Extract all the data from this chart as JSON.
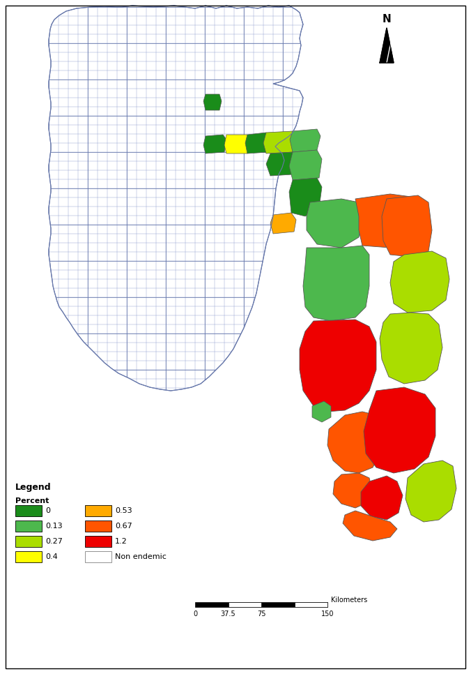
{
  "background_color": "#ffffff",
  "map_edge_color": "#8899bb",
  "map_fill_nonendemic": "#ffffff",
  "upazila_border_color": "#8899cc",
  "upazila_linewidth": 0.3,
  "district_border_color": "#6677aa",
  "district_linewidth": 0.7,
  "legend_items": [
    {
      "label": "0",
      "color": "#1a8c1a"
    },
    {
      "label": "0.13",
      "color": "#4db84d"
    },
    {
      "label": "0.27",
      "color": "#aadd00"
    },
    {
      "label": "0.4",
      "color": "#ffff00"
    },
    {
      "label": "0.53",
      "color": "#ffaa00"
    },
    {
      "label": "0.67",
      "color": "#ff5500"
    },
    {
      "label": "1.2",
      "color": "#ee0000"
    },
    {
      "label": "Non endemic",
      "color": "#ffffff"
    }
  ],
  "scalebar_ticks": [
    "0",
    "37.5",
    "75",
    "150"
  ],
  "scalebar_label": "Kilometers"
}
